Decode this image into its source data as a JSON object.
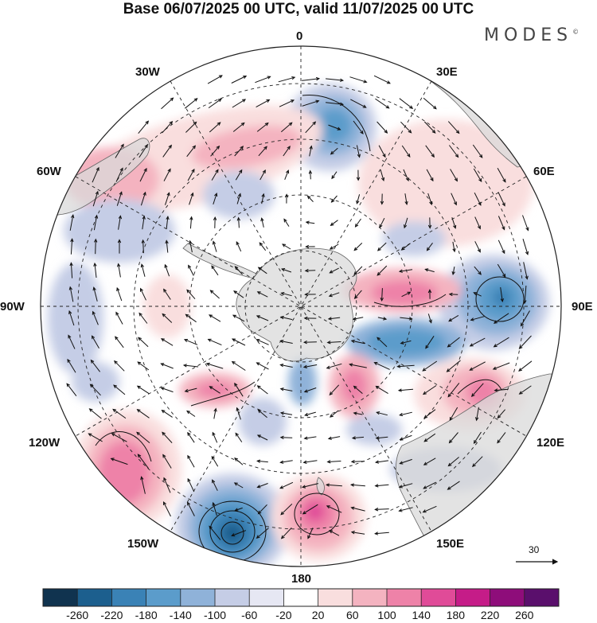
{
  "title": "Base 06/07/2025 00 UTC, valid 11/07/2025 00 UTC",
  "brand": "MODES",
  "longitude_labels": {
    "n0": "0",
    "n30e": "30E",
    "n60e": "60E",
    "n90e": "90E",
    "n120e": "120E",
    "n150e": "150E",
    "n180": "180",
    "n150w": "150W",
    "n120w": "120W",
    "n90w": "90W",
    "n60w": "60W",
    "n30w": "30W"
  },
  "reference_vector": {
    "label": "30",
    "direction": "east"
  },
  "projection": "south-polar-stereographic",
  "colorbar": {
    "ticks": [
      "-260",
      "-220",
      "-180",
      "-140",
      "-100",
      "-60",
      "-20",
      "20",
      "60",
      "100",
      "140",
      "180",
      "220",
      "260"
    ],
    "colors": [
      "#10334f",
      "#1c5f8e",
      "#3a82b6",
      "#5b9ccb",
      "#8fb2d9",
      "#c5cde6",
      "#e6e7f3",
      "#ffffff",
      "#f9dede",
      "#f4b3c0",
      "#ee82a8",
      "#e04b98",
      "#c51c88",
      "#8e0d7a",
      "#5a0f6c"
    ]
  },
  "anomaly_centers": [
    {
      "type": "negative",
      "value": -200,
      "region": "150W-180"
    },
    {
      "type": "negative",
      "value": -140,
      "region": "90E"
    },
    {
      "type": "negative",
      "value": -100,
      "region": "0-30E"
    },
    {
      "type": "positive",
      "value": 140,
      "region": "120W-150W"
    },
    {
      "type": "positive",
      "value": 140,
      "region": "180-150E"
    },
    {
      "type": "positive",
      "value": 100,
      "region": "120E"
    },
    {
      "type": "positive",
      "value": 100,
      "region": "60E-90E"
    }
  ]
}
